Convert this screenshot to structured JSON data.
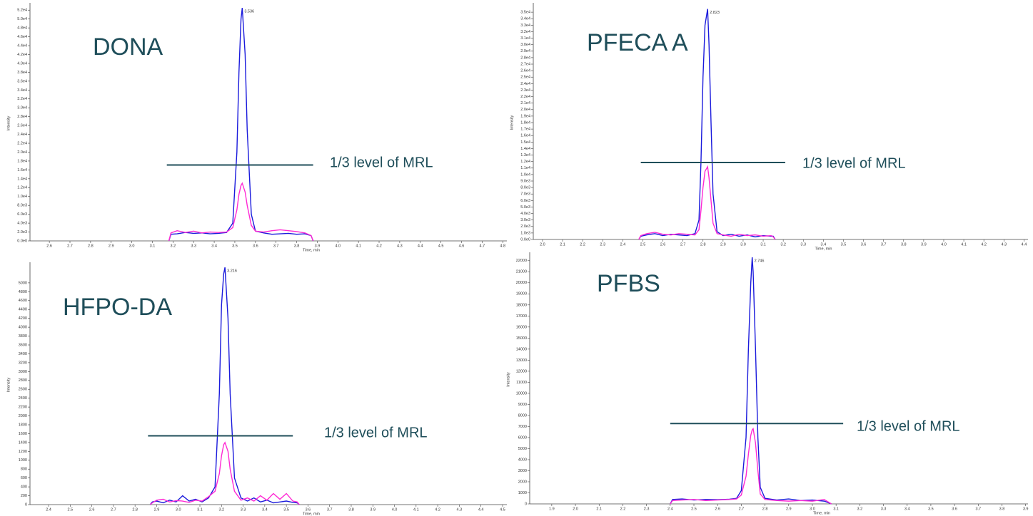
{
  "chart_data": [
    {
      "type": "line",
      "title": "DONA",
      "ylabel": "Intensity",
      "xlabel": "Time, min",
      "peak_label": "3.536",
      "mrl": {
        "y": 17100,
        "x_range": [
          3.17,
          3.88
        ],
        "label": "1/3 level of MRL"
      },
      "xlim": [
        2.506,
        4.82
      ],
      "ylim": [
        0,
        53000
      ],
      "xticks": [
        2.6,
        2.7,
        2.8,
        2.9,
        {
          "value": 3,
          "label": "3.0"
        },
        3.1,
        3.2,
        3.3,
        3.4,
        3.5,
        3.6,
        3.7,
        3.8,
        3.9,
        {
          "value": 4,
          "label": "4.0"
        },
        4.1,
        4.2,
        4.3,
        4.4,
        4.5,
        4.6,
        4.7,
        4.8
      ],
      "yticks": [
        {
          "value": 0,
          "label": "0.0e0"
        },
        {
          "value": 2000,
          "label": "2.0e3"
        },
        {
          "value": 4000,
          "label": "4.0e3"
        },
        {
          "value": 6000,
          "label": "6.0e3"
        },
        {
          "value": 8000,
          "label": "8.0e3"
        },
        {
          "value": 10000,
          "label": "1.0e4"
        },
        {
          "value": 12000,
          "label": "1.2e4"
        },
        {
          "value": 14000,
          "label": "1.4e4"
        },
        {
          "value": 16000,
          "label": "1.6e4"
        },
        {
          "value": 18000,
          "label": "1.8e4"
        },
        {
          "value": 20000,
          "label": "2.0e4"
        },
        {
          "value": 22000,
          "label": "2.2e4"
        },
        {
          "value": 24000,
          "label": "2.4e4"
        },
        {
          "value": 26000,
          "label": "2.6e4"
        },
        {
          "value": 28000,
          "label": "2.8e4"
        },
        {
          "value": 30000,
          "label": "3.0e4"
        },
        {
          "value": 32000,
          "label": "3.2e4"
        },
        {
          "value": 34000,
          "label": "3.4e4"
        },
        {
          "value": 36000,
          "label": "3.6e4"
        },
        {
          "value": 38000,
          "label": "3.8e4"
        },
        {
          "value": 40000,
          "label": "4.0e4"
        },
        {
          "value": 42000,
          "label": "4.2e4"
        },
        {
          "value": 44000,
          "label": "4.4e4"
        },
        {
          "value": 46000,
          "label": "4.6e4"
        },
        {
          "value": 48000,
          "label": "4.8e4"
        },
        {
          "value": 50000,
          "label": "5.0e4"
        },
        {
          "value": 52000,
          "label": "5.2e4"
        }
      ],
      "x": [
        3.18,
        3.19,
        3.22,
        3.26,
        3.3,
        3.34,
        3.38,
        3.42,
        3.46,
        3.49,
        3.51,
        3.52,
        3.53,
        3.536,
        3.55,
        3.56,
        3.58,
        3.6,
        3.64,
        3.68,
        3.72,
        3.76,
        3.8,
        3.84,
        3.87,
        3.88
      ],
      "series": [
        {
          "color": "#1a1adc",
          "values": [
            0,
            1500,
            1600,
            1900,
            1700,
            1800,
            1600,
            1700,
            1900,
            4000,
            20000,
            38000,
            50000,
            52500,
            42000,
            25000,
            6000,
            2200,
            1800,
            1500,
            1600,
            1700,
            1500,
            1600,
            1200,
            0
          ]
        },
        {
          "color": "#ff2ad4",
          "values": [
            0,
            1800,
            2300,
            1900,
            2200,
            1800,
            2000,
            1900,
            2000,
            3000,
            7000,
            10500,
            12500,
            13000,
            11000,
            8000,
            3500,
            2200,
            2000,
            2300,
            2500,
            2300,
            2100,
            1800,
            1200,
            0
          ]
        }
      ]
    },
    {
      "type": "line",
      "title": "PFECA A",
      "ylabel": "Intensity",
      "xlabel": "Time, min",
      "peak_label": "2.823",
      "mrl": {
        "y": 11850,
        "x_range": [
          2.49,
          3.21
        ],
        "label": "1/3 level of MRL"
      },
      "xlim": [
        1.954,
        4.42
      ],
      "ylim": [
        0,
        36000
      ],
      "xticks": [
        {
          "value": 2,
          "label": "2.0"
        },
        2.1,
        2.2,
        2.3,
        2.4,
        2.5,
        2.6,
        2.7,
        2.8,
        2.9,
        {
          "value": 3,
          "label": "3.0"
        },
        3.1,
        3.2,
        3.3,
        3.4,
        3.5,
        3.6,
        3.7,
        3.8,
        3.9,
        {
          "value": 4,
          "label": "4.0"
        },
        4.1,
        4.2,
        4.3,
        4.4
      ],
      "yticks": [
        {
          "value": 0,
          "label": "0.0e0"
        },
        {
          "value": 1000,
          "label": "1.0e3"
        },
        {
          "value": 2000,
          "label": "2.0e3"
        },
        {
          "value": 3000,
          "label": "3.0e3"
        },
        {
          "value": 4000,
          "label": "4.0e3"
        },
        {
          "value": 5000,
          "label": "5.0e3"
        },
        {
          "value": 6000,
          "label": "6.0e3"
        },
        {
          "value": 7000,
          "label": "7.0e3"
        },
        {
          "value": 8000,
          "label": "8.0e3"
        },
        {
          "value": 9000,
          "label": "9.0e3"
        },
        {
          "value": 10000,
          "label": "1.0e4"
        },
        {
          "value": 11000,
          "label": "1.1e4"
        },
        {
          "value": 12000,
          "label": "1.2e4"
        },
        {
          "value": 13000,
          "label": "1.3e4"
        },
        {
          "value": 14000,
          "label": "1.4e4"
        },
        {
          "value": 15000,
          "label": "1.5e4"
        },
        {
          "value": 16000,
          "label": "1.6e4"
        },
        {
          "value": 17000,
          "label": "1.7e4"
        },
        {
          "value": 18000,
          "label": "1.8e4"
        },
        {
          "value": 19000,
          "label": "1.9e4"
        },
        {
          "value": 20000,
          "label": "2.0e4"
        },
        {
          "value": 21000,
          "label": "2.1e4"
        },
        {
          "value": 22000,
          "label": "2.2e4"
        },
        {
          "value": 23000,
          "label": "2.3e4"
        },
        {
          "value": 24000,
          "label": "2.4e4"
        },
        {
          "value": 25000,
          "label": "2.5e4"
        },
        {
          "value": 26000,
          "label": "2.6e4"
        },
        {
          "value": 27000,
          "label": "2.7e4"
        },
        {
          "value": 28000,
          "label": "2.8e4"
        },
        {
          "value": 29000,
          "label": "2.9e4"
        },
        {
          "value": 30000,
          "label": "3.0e4"
        },
        {
          "value": 31000,
          "label": "3.1e4"
        },
        {
          "value": 32000,
          "label": "3.2e4"
        },
        {
          "value": 33000,
          "label": "3.3e4"
        },
        {
          "value": 34000,
          "label": "3.4e4"
        },
        {
          "value": 35000,
          "label": "3.5e4"
        }
      ],
      "x": [
        2.48,
        2.49,
        2.52,
        2.56,
        2.6,
        2.64,
        2.68,
        2.72,
        2.76,
        2.78,
        2.79,
        2.8,
        2.81,
        2.823,
        2.83,
        2.84,
        2.85,
        2.87,
        2.9,
        2.94,
        2.98,
        3.02,
        3.06,
        3.1,
        3.14,
        3.15,
        3.16
      ],
      "series": [
        {
          "color": "#1a1adc",
          "values": [
            0,
            500,
            700,
            900,
            600,
            800,
            700,
            600,
            900,
            3000,
            12000,
            25000,
            33000,
            35500,
            30000,
            18000,
            7000,
            1200,
            600,
            800,
            500,
            700,
            400,
            600,
            500,
            500,
            0
          ]
        },
        {
          "color": "#ff2ad4",
          "values": [
            0,
            600,
            900,
            1100,
            800,
            700,
            900,
            800,
            700,
            1500,
            4500,
            8000,
            10500,
            11200,
            9500,
            6000,
            2500,
            900,
            700,
            500,
            800,
            600,
            700,
            500,
            600,
            400,
            0
          ]
        }
      ]
    },
    {
      "type": "line",
      "title": "HFPO-DA",
      "ylabel": "Intensity",
      "xlabel": "Time, min",
      "peak_label": "3.216",
      "mrl": {
        "y": 1550,
        "x_range": [
          2.86,
          3.53
        ],
        "label": "1/3 level of MRL"
      },
      "xlim": [
        2.314,
        4.52
      ],
      "ylim": [
        0,
        5400
      ],
      "xticks": [
        2.4,
        2.5,
        2.6,
        2.7,
        2.8,
        2.9,
        {
          "value": 3,
          "label": "3.0"
        },
        3.1,
        3.2,
        3.3,
        3.4,
        3.5,
        3.6,
        3.7,
        3.8,
        3.9,
        {
          "value": 4,
          "label": "4.0"
        },
        4.1,
        4.2,
        4.3,
        4.4,
        4.5
      ],
      "yticks": [
        0,
        200,
        400,
        600,
        800,
        1000,
        1200,
        1400,
        1600,
        1800,
        2000,
        2200,
        2400,
        2600,
        2800,
        3000,
        3200,
        3400,
        3600,
        3800,
        4000,
        4200,
        4400,
        4600,
        4800,
        5000
      ],
      "x": [
        2.87,
        2.88,
        2.9,
        2.93,
        2.96,
        2.99,
        3.02,
        3.05,
        3.08,
        3.11,
        3.14,
        3.17,
        3.19,
        3.2,
        3.21,
        3.216,
        3.23,
        3.24,
        3.26,
        3.29,
        3.32,
        3.35,
        3.38,
        3.41,
        3.44,
        3.47,
        3.5,
        3.53,
        3.55,
        3.56
      ],
      "series": [
        {
          "color": "#1a1adc",
          "values": [
            0,
            60,
            80,
            40,
            100,
            60,
            200,
            80,
            120,
            60,
            150,
            400,
            2500,
            4500,
            5200,
            5350,
            4200,
            2500,
            600,
            150,
            80,
            150,
            60,
            100,
            40,
            60,
            80,
            50,
            40,
            0
          ]
        },
        {
          "color": "#ff2ad4",
          "values": [
            0,
            40,
            100,
            120,
            60,
            90,
            80,
            50,
            100,
            80,
            180,
            300,
            700,
            1100,
            1350,
            1400,
            1200,
            800,
            300,
            100,
            150,
            80,
            200,
            100,
            250,
            120,
            250,
            80,
            60,
            0
          ]
        }
      ]
    },
    {
      "type": "line",
      "title": "PFBS",
      "ylabel": "Intensity",
      "xlabel": "Time, min",
      "peak_label": "2.746",
      "mrl": {
        "y": 7270,
        "x_range": [
          2.4,
          3.13
        ],
        "label": "1/3 level of MRL"
      },
      "xlim": [
        1.807,
        3.91
      ],
      "ylim": [
        0,
        22500
      ],
      "xticks": [
        1.9,
        {
          "value": 2,
          "label": "2.0"
        },
        2.1,
        2.2,
        2.3,
        2.4,
        2.5,
        2.6,
        2.7,
        2.8,
        2.9,
        {
          "value": 3,
          "label": "3.0"
        },
        3.1,
        3.2,
        3.3,
        3.4,
        3.5,
        3.6,
        3.7,
        3.8,
        3.9
      ],
      "yticks": [
        0,
        1000,
        2000,
        3000,
        4000,
        5000,
        6000,
        7000,
        8000,
        9000,
        10000,
        11000,
        12000,
        13000,
        14000,
        15000,
        16000,
        17000,
        18000,
        19000,
        20000,
        21000,
        22000
      ],
      "x": [
        2.4,
        2.41,
        2.45,
        2.5,
        2.55,
        2.6,
        2.65,
        2.68,
        2.7,
        2.72,
        2.73,
        2.74,
        2.746,
        2.75,
        2.76,
        2.77,
        2.78,
        2.8,
        2.85,
        2.9,
        2.95,
        3.0,
        3.05,
        3.08
      ],
      "series": [
        {
          "color": "#1a1adc",
          "values": [
            0,
            400,
            450,
            350,
            400,
            380,
            420,
            500,
            1200,
            6000,
            14000,
            20000,
            22300,
            21000,
            14000,
            6000,
            1500,
            500,
            350,
            450,
            300,
            350,
            250,
            0
          ]
        },
        {
          "color": "#ff2ad4",
          "values": [
            0,
            300,
            350,
            400,
            300,
            350,
            400,
            450,
            800,
            2500,
            4500,
            6200,
            6700,
            6800,
            5500,
            3000,
            900,
            400,
            300,
            250,
            300,
            250,
            400,
            0
          ]
        }
      ]
    }
  ]
}
